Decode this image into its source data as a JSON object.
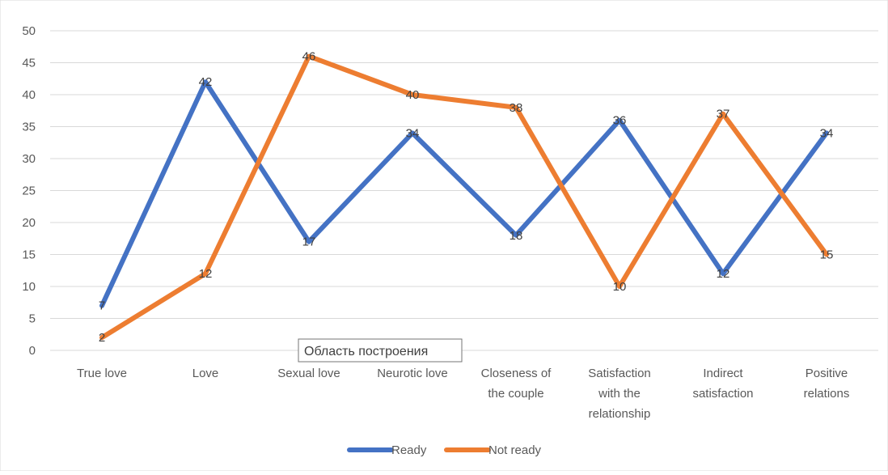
{
  "chart_data": {
    "type": "line",
    "categories": [
      "True love",
      "Love",
      "Sexual love",
      "Neurotic love",
      "Closeness of the couple",
      "Satisfaction with the relationship",
      "Indirect satisfaction",
      "Positive relations"
    ],
    "category_lines": [
      [
        "True love"
      ],
      [
        "Love"
      ],
      [
        "Sexual love"
      ],
      [
        "Neurotic love"
      ],
      [
        "Closeness of",
        "the couple"
      ],
      [
        "Satisfaction",
        "with the",
        "relationship"
      ],
      [
        "Indirect",
        "satisfaction"
      ],
      [
        "Positive",
        "relations"
      ]
    ],
    "series": [
      {
        "name": "Ready",
        "color": "#4472C4",
        "values": [
          7,
          42,
          17,
          34,
          18,
          36,
          12,
          34
        ]
      },
      {
        "name": "Not ready",
        "color": "#ED7D31",
        "values": [
          2,
          12,
          46,
          40,
          38,
          10,
          37,
          15
        ]
      }
    ],
    "ylim": [
      0,
      50
    ],
    "yticks": [
      0,
      5,
      10,
      15,
      20,
      25,
      30,
      35,
      40,
      45,
      50
    ],
    "grid": true,
    "legend": "bottom",
    "data_labels": true
  },
  "tooltip": {
    "text": "Область построения"
  }
}
